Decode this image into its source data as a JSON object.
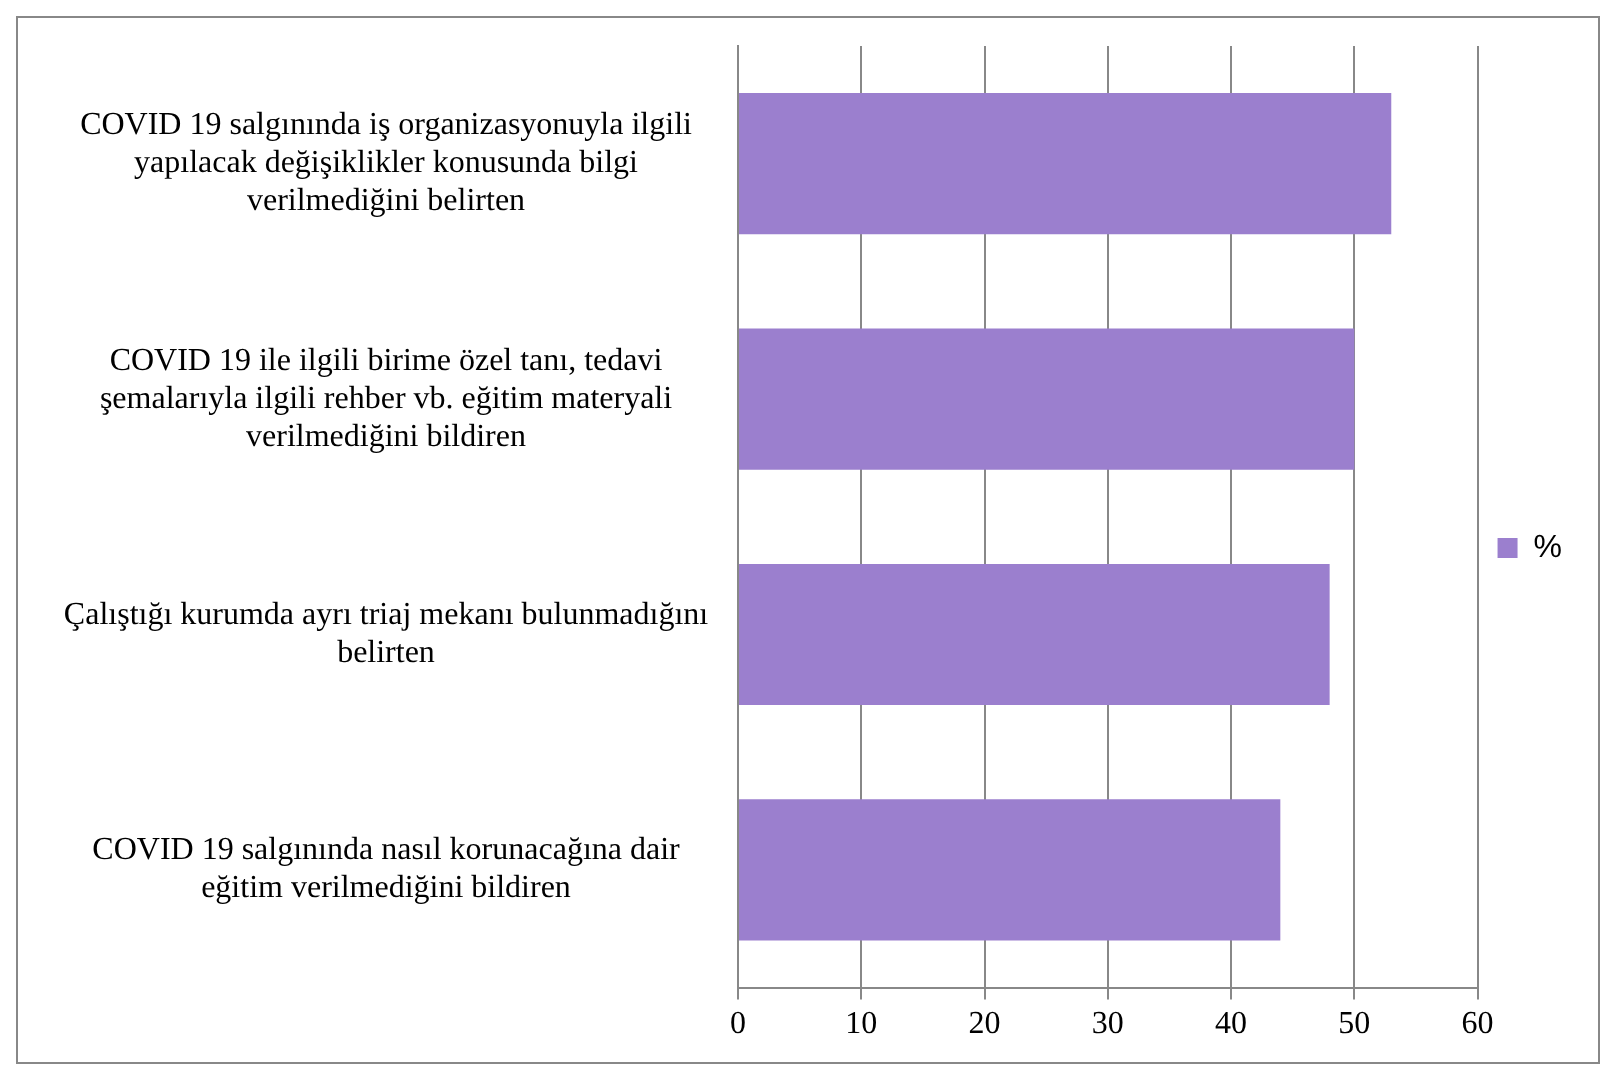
{
  "chart_data": {
    "type": "bar",
    "orientation": "horizontal",
    "categories": [
      "COVID 19 salgınında iş organizasyonuyla ilgili yapılacak değişiklikler konusunda bilgi verilmediğini belirten",
      "COVID 19 ile ilgili birime özel tanı, tedavi şemalarıyla ilgili rehber vb. eğitim materyali verilmediğini bildiren",
      "Çalıştığı kurumda ayrı triaj mekanı bulunmadığını belirten",
      "COVID 19 salgınında nasıl korunacağına dair eğitim verilmediğini bildiren"
    ],
    "series": [
      {
        "name": "%",
        "color": "#9b7fce",
        "values": [
          53,
          50,
          48,
          44
        ]
      }
    ],
    "xlim": [
      0,
      60
    ],
    "xticks": [
      0,
      10,
      20,
      30,
      40,
      50,
      60
    ],
    "grid": "x",
    "legend": "right"
  }
}
